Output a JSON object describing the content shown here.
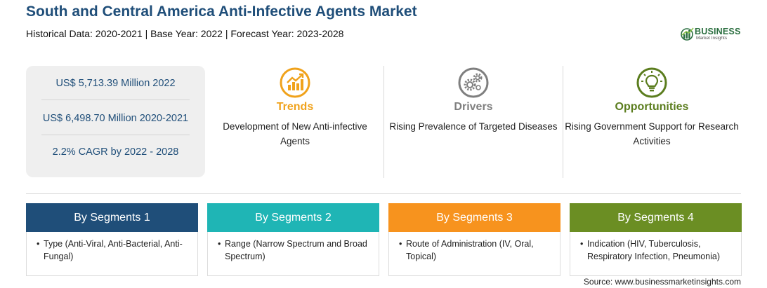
{
  "header": {
    "title": "South and Central America Anti-Infective Agents Market",
    "subtitle": "Historical Data: 2020-2021 | Base Year: 2022 | Forecast Year: 2023-2028"
  },
  "logo": {
    "word": "BUSINESS",
    "sub": "Market Insights",
    "color": "#2a6e3f"
  },
  "stats": [
    {
      "text": "US$ 5,713.39 Million 2022"
    },
    {
      "text": "US$ 6,498.70 Million 2020-2021"
    },
    {
      "text": "2.2% CAGR by 2022 - 2028"
    }
  ],
  "columns": [
    {
      "heading": "Trends",
      "text": "Development of New Anti-infective Agents",
      "color": "#f0a21b",
      "icon": "rising-chart-icon"
    },
    {
      "heading": "Drivers",
      "text": "Rising Prevalence of Targeted Diseases",
      "color": "#7f7f7f",
      "icon": "gears-icon"
    },
    {
      "heading": "Opportunities",
      "text": "Rising Government Support for Research Activities",
      "color": "#5b7d1e",
      "icon": "lightbulb-icon"
    }
  ],
  "segments": [
    {
      "title": "By Segments 1",
      "item": "Type (Anti-Viral, Anti-Bacterial, Anti-Fungal)",
      "color": "#1f4e79"
    },
    {
      "title": "By Segments 2",
      "item": "Range (Narrow Spectrum and Broad Spectrum)",
      "color": "#1fb5b5"
    },
    {
      "title": "By Segments 3",
      "item": "Route of Administration (IV, Oral, Topical)",
      "color": "#f7931e"
    },
    {
      "title": "By Segments 4",
      "item": "Indication (HIV, Tuberculosis, Respiratory Infection, Pneumonia)",
      "color": "#6b8e23"
    }
  ],
  "source": "Source: www.businessmarketinsights.com"
}
